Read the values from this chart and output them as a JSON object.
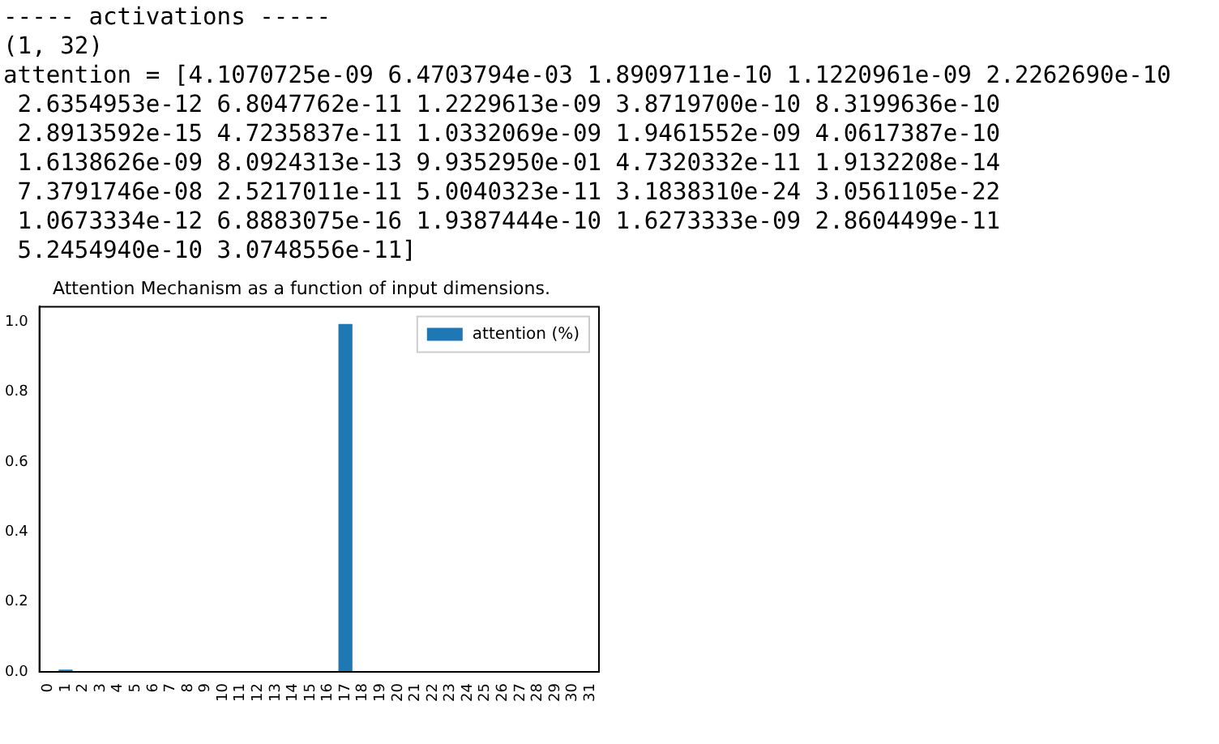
{
  "chart_data": {
    "type": "bar",
    "title": "Attention Mechanism as a function of input dimensions.",
    "annotations": [
      "----- activations -----",
      "(1, 32)",
      "attention = [4.1070725e-09 6.4703794e-03 1.8909711e-10 1.1220961e-09 2.2262690e-10",
      " 2.6354953e-12 6.8047762e-11 1.2229613e-09 3.8719700e-10 8.3199636e-10",
      " 2.8913592e-15 4.7235837e-11 1.0332069e-09 1.9461552e-09 4.0617387e-10",
      " 1.6138626e-09 8.0924313e-13 9.9352950e-01 4.7320332e-11 1.9132208e-14",
      " 7.3791746e-08 2.5217011e-11 5.0040323e-11 3.1838310e-24 3.0561105e-22",
      " 1.0673334e-12 6.8883075e-16 1.9387444e-10 1.6273333e-09 2.8604499e-11",
      " 5.2454940e-10 3.0748556e-11]"
    ],
    "categories": [
      "0",
      "1",
      "2",
      "3",
      "4",
      "5",
      "6",
      "7",
      "8",
      "9",
      "10",
      "11",
      "12",
      "13",
      "14",
      "15",
      "16",
      "17",
      "18",
      "19",
      "20",
      "21",
      "22",
      "23",
      "24",
      "25",
      "26",
      "27",
      "28",
      "29",
      "30",
      "31"
    ],
    "series": [
      {
        "name": "attention (%)",
        "color": "#1f77b4",
        "values": [
          4.1070725e-09,
          0.0064703794,
          1.8909711e-10,
          1.1220961e-09,
          2.226269e-10,
          2.6354953e-12,
          6.8047762e-11,
          1.2229613e-09,
          3.87197e-10,
          8.3199636e-10,
          2.8913592e-15,
          4.7235837e-11,
          1.0332069e-09,
          1.9461552e-09,
          4.0617387e-10,
          1.6138626e-09,
          8.0924313e-13,
          0.9935295,
          4.7320332e-11,
          1.9132208e-14,
          7.3791746e-08,
          2.5217011e-11,
          5.0040323e-11,
          3.183831e-24,
          3.0561105e-22,
          1.0673334e-12,
          6.8883075e-16,
          1.9387444e-10,
          1.6273333e-09,
          2.8604499e-11,
          5.245494e-10,
          3.0748556e-11
        ]
      }
    ],
    "ylim": [
      0,
      1.043
    ],
    "yticks": [
      {
        "value": 0,
        "label": "0.0"
      },
      {
        "value": 0.2,
        "label": "0.2"
      },
      {
        "value": 0.4,
        "label": "0.4"
      },
      {
        "value": 0.6,
        "label": "0.6"
      },
      {
        "value": 0.8,
        "label": "0.8"
      },
      {
        "value": 1,
        "label": "1.0"
      }
    ],
    "grid": false,
    "legend": "top right"
  }
}
